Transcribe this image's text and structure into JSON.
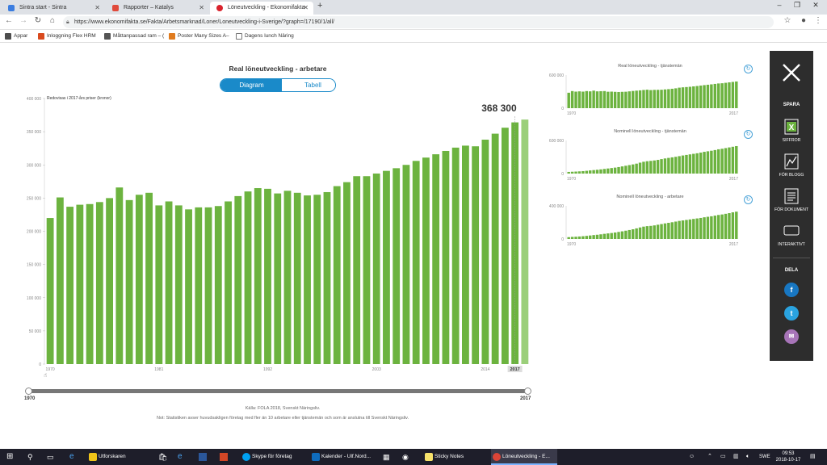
{
  "browser": {
    "tabs": [
      {
        "title": "Sintra start - Sintra",
        "color": "#3b7de0"
      },
      {
        "title": "Rapporter – Katalys",
        "color": "#e04a3b"
      },
      {
        "title": "Löneutveckling - Ekonomifakta",
        "color": "#d9232d"
      }
    ],
    "url": "https://www.ekonomifakta.se/Fakta/Arbetsmarknad/Loner/Loneutveckling-i-Sverige/?graph=/17190/1/all/",
    "bookmarks": [
      {
        "label": "Appar",
        "color": "#4d4d4d"
      },
      {
        "label": "Inloggning Flex HRM",
        "color": "#d94a1e"
      },
      {
        "label": "Måttanpassad ram – (",
        "color": "#555555"
      },
      {
        "label": "Poster Many Sizes A–",
        "color": "#e07b1e"
      },
      {
        "label": "Dagens lunch Näring",
        "color": "#777777"
      }
    ]
  },
  "main_chart": {
    "title": "Real löneutveckling - arbetare",
    "toggle_diagram": "Diagram",
    "toggle_table": "Tabell",
    "unit_note": "Redovisas i 2017-års priser (kronor)",
    "highlight_value": "368 300",
    "slider_start": "1970",
    "slider_end": "2017",
    "source": "Källa: FOLA 2018, Svenskt Näringsliv.",
    "note": "Not: Statistiken avser huvudsakligen företag med fler än 10 arbetare eller tjänstemän och som är anslutna till Svenskt Näringsliv."
  },
  "chart_data": [
    {
      "type": "bar",
      "title": "Real löneutveckling - arbetare",
      "x_start": 1970,
      "x_end": 2017,
      "xticks": [
        "1970",
        "1981",
        "1992",
        "2003",
        "2014",
        "2017"
      ],
      "yticks": [
        "0",
        "50 000",
        "100 000",
        "150 000",
        "200 000",
        "250 000",
        "300 000",
        "350 000",
        "400 000"
      ],
      "ylim": [
        0,
        400000
      ],
      "bar_color": "#6cb33f",
      "highlight_color": "#9bcf7a",
      "values": [
        220000,
        251000,
        237000,
        240000,
        241000,
        244000,
        250000,
        266000,
        247000,
        255000,
        258000,
        239000,
        245000,
        239000,
        233000,
        236000,
        236000,
        238000,
        245000,
        253000,
        260000,
        265000,
        264000,
        257000,
        261000,
        258000,
        254000,
        255000,
        259000,
        268000,
        274000,
        283000,
        283000,
        287000,
        291000,
        295000,
        300000,
        306000,
        311000,
        316000,
        321000,
        326000,
        329000,
        328000,
        338000,
        347000,
        356000,
        364000,
        368300
      ]
    },
    {
      "type": "bar",
      "title": "Real löneutveckling - tjänstemän",
      "x_start": 1970,
      "x_end": 2017,
      "yticks": [
        "0",
        "600 000"
      ],
      "ylim": [
        0,
        600000
      ],
      "values": [
        280000,
        310000,
        300000,
        305000,
        300000,
        310000,
        305000,
        318000,
        305000,
        308000,
        310000,
        298000,
        300000,
        296000,
        293000,
        296000,
        298000,
        305000,
        312000,
        318000,
        323000,
        330000,
        335000,
        328000,
        332000,
        333000,
        334000,
        340000,
        345000,
        352000,
        360000,
        372000,
        378000,
        383000,
        388000,
        395000,
        402000,
        410000,
        418000,
        425000,
        432000,
        440000,
        448000,
        452000,
        460000,
        468000,
        476000,
        484000
      ]
    },
    {
      "type": "bar",
      "title": "Nominell löneutveckling - tjänstemän",
      "x_start": 1970,
      "x_end": 2017,
      "yticks": [
        "0",
        "600 000"
      ],
      "ylim": [
        0,
        600000
      ],
      "values": [
        30000,
        33000,
        36000,
        40000,
        44000,
        50000,
        57000,
        63000,
        69000,
        76000,
        84000,
        92000,
        100000,
        108000,
        118000,
        130000,
        142000,
        154000,
        166000,
        180000,
        198000,
        214000,
        224000,
        230000,
        238000,
        248000,
        262000,
        274000,
        284000,
        294000,
        304000,
        316000,
        328000,
        338000,
        348000,
        358000,
        368000,
        380000,
        394000,
        404000,
        414000,
        426000,
        440000,
        450000,
        462000,
        474000,
        486000,
        498000
      ]
    },
    {
      "type": "bar",
      "title": "Nominell löneutveckling - arbetare",
      "x_start": 1970,
      "x_end": 2017,
      "yticks": [
        "0",
        "400 000"
      ],
      "ylim": [
        0,
        400000
      ],
      "values": [
        22000,
        25000,
        27000,
        30000,
        33000,
        37000,
        42000,
        47000,
        51000,
        56000,
        62000,
        67000,
        72000,
        78000,
        85000,
        92000,
        100000,
        108000,
        117000,
        128000,
        139000,
        149000,
        155000,
        158000,
        164000,
        172000,
        180000,
        188000,
        195000,
        202000,
        210000,
        218000,
        224000,
        230000,
        236000,
        242000,
        248000,
        254000,
        262000,
        268000,
        274000,
        282000,
        290000,
        296000,
        304000,
        312000,
        322000,
        330000
      ]
    }
  ],
  "sidebar": {
    "spara": "SPARA",
    "siffror": "SIFFROR",
    "for_blogg": "FÖR BLOGG",
    "for_dokument": "FÖR DOKUMENT",
    "interaktivt": "INTERAKTIVT",
    "dela": "DELA"
  },
  "taskbar": {
    "apps": [
      {
        "label": "Utforskaren",
        "color": "#f0c419"
      },
      {
        "label": "Skype för företag",
        "color": "#00a1f1"
      },
      {
        "label": "Kalender - Ulf.Nord...",
        "color": "#0f6cbd"
      },
      {
        "label": "Sticky Notes",
        "color": "#f7e26b"
      },
      {
        "label": "Löneutveckling - E...",
        "color": "#db4437"
      }
    ],
    "lang": "SWE",
    "time": "09:53",
    "date": "2018-10-17"
  }
}
